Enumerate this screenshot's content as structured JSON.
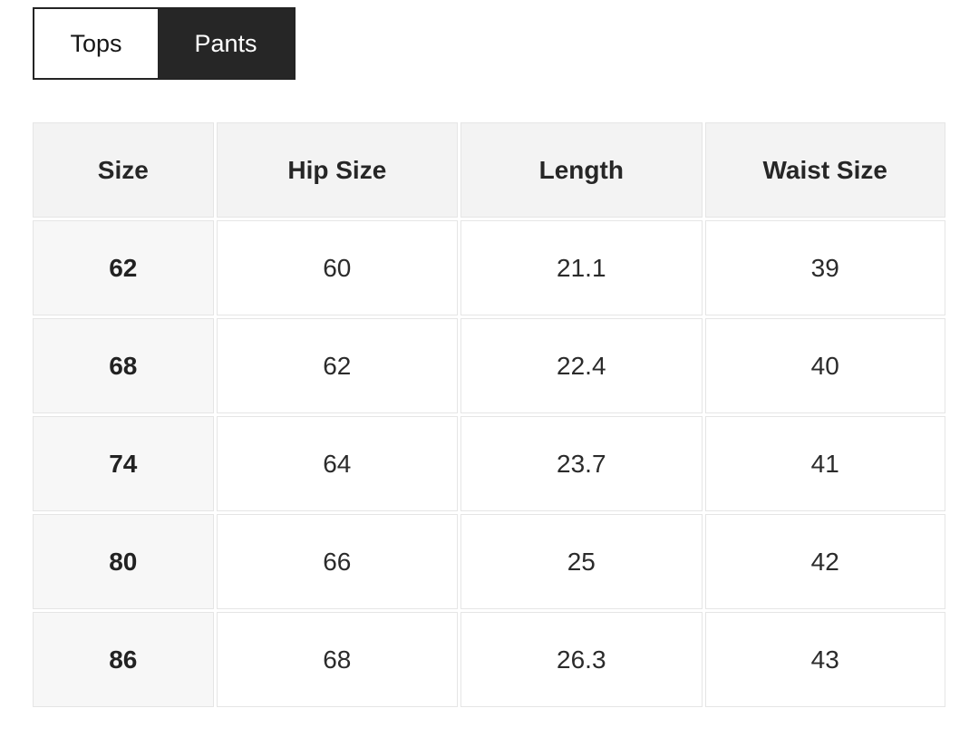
{
  "tabs": {
    "items": [
      {
        "label": "Tops",
        "active": false
      },
      {
        "label": "Pants",
        "active": true
      }
    ]
  },
  "size_chart": {
    "columns": [
      "Size",
      "Hip Size",
      "Length",
      "Waist Size"
    ],
    "rows": [
      [
        "62",
        "60",
        "21.1",
        "39"
      ],
      [
        "68",
        "62",
        "22.4",
        "40"
      ],
      [
        "74",
        "64",
        "23.7",
        "41"
      ],
      [
        "80",
        "66",
        "25",
        "42"
      ],
      [
        "86",
        "68",
        "26.3",
        "43"
      ]
    ]
  },
  "colors": {
    "active_tab_bg": "#262626",
    "active_tab_text": "#ffffff",
    "inactive_tab_bg": "#ffffff",
    "tab_border": "#242424",
    "header_cell_bg": "#f3f3f3",
    "first_column_bg": "#f7f7f7",
    "cell_border": "#e5e5e5",
    "text": "#212121"
  }
}
